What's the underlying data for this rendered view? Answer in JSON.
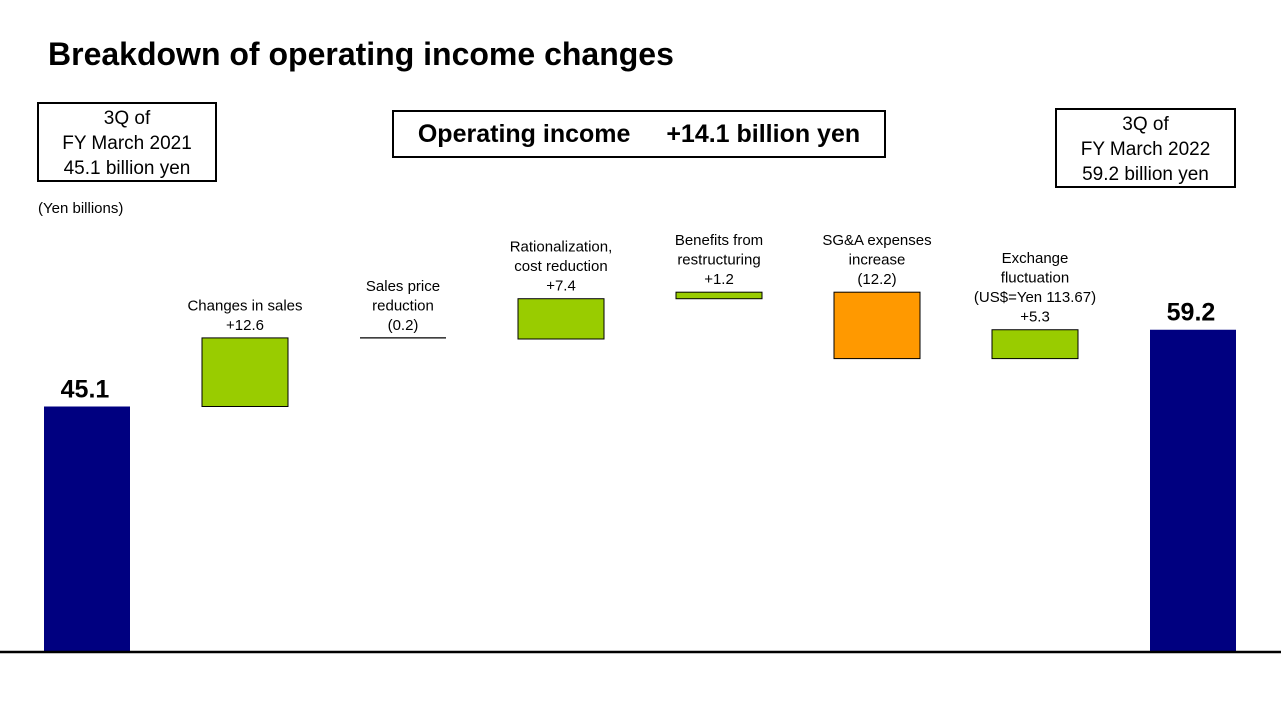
{
  "page": {
    "title": "Breakdown of operating income changes",
    "unit_note": "(Yen billions)",
    "start_box": {
      "line1": "3Q of",
      "line2": "FY March 2021",
      "line3": "45.1 billion  yen"
    },
    "end_box": {
      "line1": "3Q of",
      "line2": "FY March 2022",
      "line3": "59.2 billion  yen"
    },
    "summary": {
      "label": "Operating income",
      "value": "+14.1 billion yen"
    }
  },
  "colors": {
    "total_bar": "#000080",
    "increase_bar": "#99CC00",
    "decrease_bar": "#FF9900"
  },
  "chart_data": {
    "type": "waterfall",
    "title": "Breakdown of operating income changes",
    "unit": "Yen billions",
    "start": {
      "label": "45.1",
      "value": 45.1
    },
    "end": {
      "label": "59.2",
      "value": 59.2
    },
    "steps": [
      {
        "label_lines": [
          "Changes in sales",
          "+12.6"
        ],
        "value": 12.6
      },
      {
        "label_lines": [
          "Sales price",
          "reduction",
          "(0.2)"
        ],
        "value": -0.2
      },
      {
        "label_lines": [
          "Rationalization,",
          "cost reduction",
          "+7.4"
        ],
        "value": 7.4
      },
      {
        "label_lines": [
          "Benefits from",
          "restructuring",
          "+1.2"
        ],
        "value": 1.2
      },
      {
        "label_lines": [
          "SG&A expenses",
          "increase",
          "(12.2)"
        ],
        "value": -12.2
      },
      {
        "label_lines": [
          "Exchange",
          "fluctuation",
          "(US$=Yen 113.67)",
          "+5.3"
        ],
        "value": 5.3
      }
    ]
  }
}
